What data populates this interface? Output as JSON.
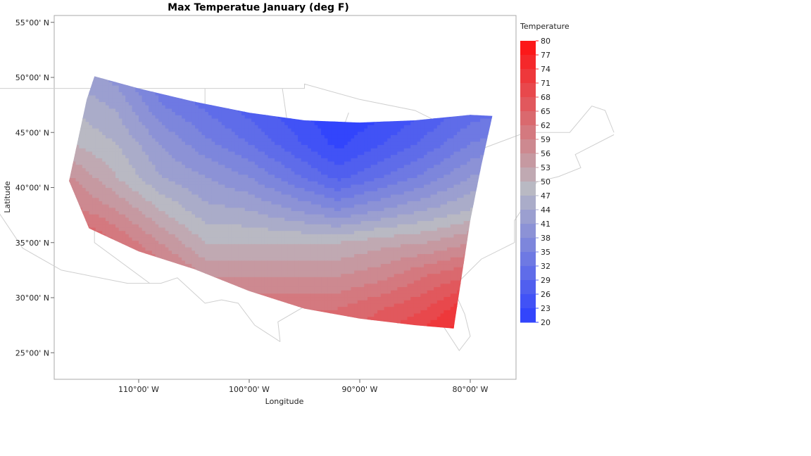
{
  "chart_data": {
    "type": "heatmap",
    "subtype": "filled-contour-map",
    "title": "Max Temperatue January (deg F)",
    "xlabel": "Longitude",
    "ylabel": "Latitude",
    "xlim": [
      -117.5,
      -75.7
    ],
    "ylim": [
      22.4,
      55.6
    ],
    "x_ticks": [
      {
        "value": -110,
        "label": "110°00' W"
      },
      {
        "value": -100,
        "label": "100°00' W"
      },
      {
        "value": -90,
        "label": "90°00' W"
      },
      {
        "value": -80,
        "label": "80°00' W"
      }
    ],
    "y_ticks": [
      {
        "value": 55,
        "label": "55°00' N"
      },
      {
        "value": 50,
        "label": "50°00' N"
      },
      {
        "value": 45,
        "label": "45°00' N"
      },
      {
        "value": 40,
        "label": "40°00' N"
      },
      {
        "value": 35,
        "label": "35°00' N"
      },
      {
        "value": 30,
        "label": "30°00' N"
      },
      {
        "value": 25,
        "label": "25°00' N"
      }
    ],
    "grid": false,
    "legend": {
      "title": "Temperature",
      "placement": "right",
      "levels": [
        80,
        77,
        74,
        71,
        68,
        65,
        62,
        59,
        56,
        53,
        50,
        47,
        44,
        41,
        38,
        35,
        32,
        29,
        26,
        23,
        20
      ]
    },
    "color_scale": {
      "low": "#2b3fff",
      "mid": "#b9b9c3",
      "high": "#ff1010",
      "min": 20,
      "mid_value": 48.5,
      "max": 80
    },
    "grid_lon": [
      -116,
      -112,
      -108,
      -104,
      -100,
      -96,
      -92,
      -88,
      -84,
      -80,
      -76
    ],
    "grid_lat": [
      50,
      47,
      44,
      41,
      38,
      35,
      32,
      29,
      26
    ],
    "temperature": [
      [
        44,
        40,
        32,
        28,
        26,
        24,
        22,
        22,
        24,
        28,
        30
      ],
      [
        47,
        44,
        36,
        32,
        28,
        24,
        20,
        22,
        26,
        30,
        32
      ],
      [
        50,
        47,
        41,
        36,
        32,
        27,
        22,
        26,
        30,
        35,
        38
      ],
      [
        56,
        50,
        44,
        41,
        38,
        33,
        28,
        32,
        36,
        41,
        44
      ],
      [
        60,
        56,
        50,
        45,
        44,
        41,
        38,
        41,
        44,
        47,
        50
      ],
      [
        68,
        62,
        56,
        50,
        50,
        50,
        50,
        52,
        53,
        56,
        58
      ],
      [
        72,
        68,
        62,
        56,
        56,
        56,
        56,
        58,
        62,
        65,
        66
      ],
      [
        74,
        72,
        68,
        65,
        62,
        62,
        62,
        65,
        68,
        74,
        76
      ],
      [
        76,
        74,
        72,
        68,
        66,
        66,
        66,
        68,
        74,
        78,
        80
      ]
    ],
    "data_extent": [
      [
        -114,
        50.1
      ],
      [
        -110,
        49
      ],
      [
        -105,
        47.8
      ],
      [
        -100,
        46.8
      ],
      [
        -95,
        46.1
      ],
      [
        -90,
        45.9
      ],
      [
        -85,
        46.1
      ],
      [
        -80,
        46.6
      ],
      [
        -78,
        46.5
      ],
      [
        -79,
        42
      ],
      [
        -80,
        37
      ],
      [
        -81.5,
        27.2
      ],
      [
        -85,
        27.5
      ],
      [
        -90,
        28.1
      ],
      [
        -95,
        29
      ],
      [
        -100,
        30.6
      ],
      [
        -105,
        32.6
      ],
      [
        -110,
        34.2
      ],
      [
        -114.5,
        36.3
      ],
      [
        -116.3,
        40.6
      ],
      [
        -114.7,
        48
      ]
    ]
  }
}
